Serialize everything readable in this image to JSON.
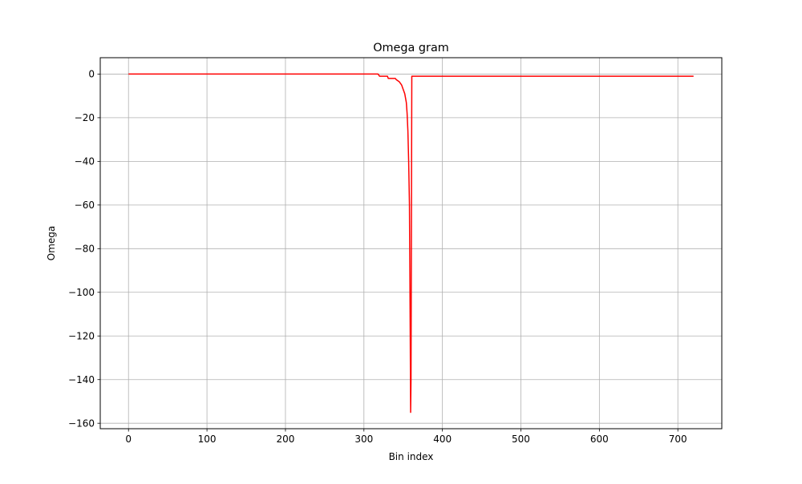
{
  "chart_data": {
    "type": "line",
    "title": "Omega gram",
    "xlabel": "Bin index",
    "ylabel": "Omega",
    "xlim": [
      -36,
      756
    ],
    "ylim": [
      -162.5,
      7.5
    ],
    "xticks": [
      0,
      100,
      200,
      300,
      400,
      500,
      600,
      700
    ],
    "yticks": [
      0,
      -20,
      -40,
      -60,
      -80,
      -100,
      -120,
      -140,
      -160
    ],
    "xtick_labels": [
      "0",
      "100",
      "200",
      "300",
      "400",
      "500",
      "600",
      "700"
    ],
    "ytick_labels": [
      "0",
      "−20",
      "−40",
      "−60",
      "−80",
      "−100",
      "−120",
      "−140",
      "−160"
    ],
    "grid": true,
    "series": [
      {
        "color": "#ff0000",
        "x": [
          0,
          100,
          200,
          300,
          317,
          318,
          319,
          320,
          330,
          331,
          340,
          341,
          345,
          348,
          350,
          352,
          354,
          355,
          356,
          357,
          358,
          358.5,
          359,
          359.5,
          360,
          361,
          362,
          400,
          500,
          600,
          700,
          720
        ],
        "y": [
          0,
          0,
          0,
          0,
          0,
          0,
          -0.5,
          -1,
          -1,
          -2,
          -2,
          -2.5,
          -3.5,
          -5,
          -7,
          -9,
          -13,
          -18,
          -26,
          -40,
          -60,
          -90,
          -120,
          -155,
          -140,
          -1,
          -1,
          -1,
          -1,
          -1,
          -1,
          -1
        ]
      }
    ]
  }
}
